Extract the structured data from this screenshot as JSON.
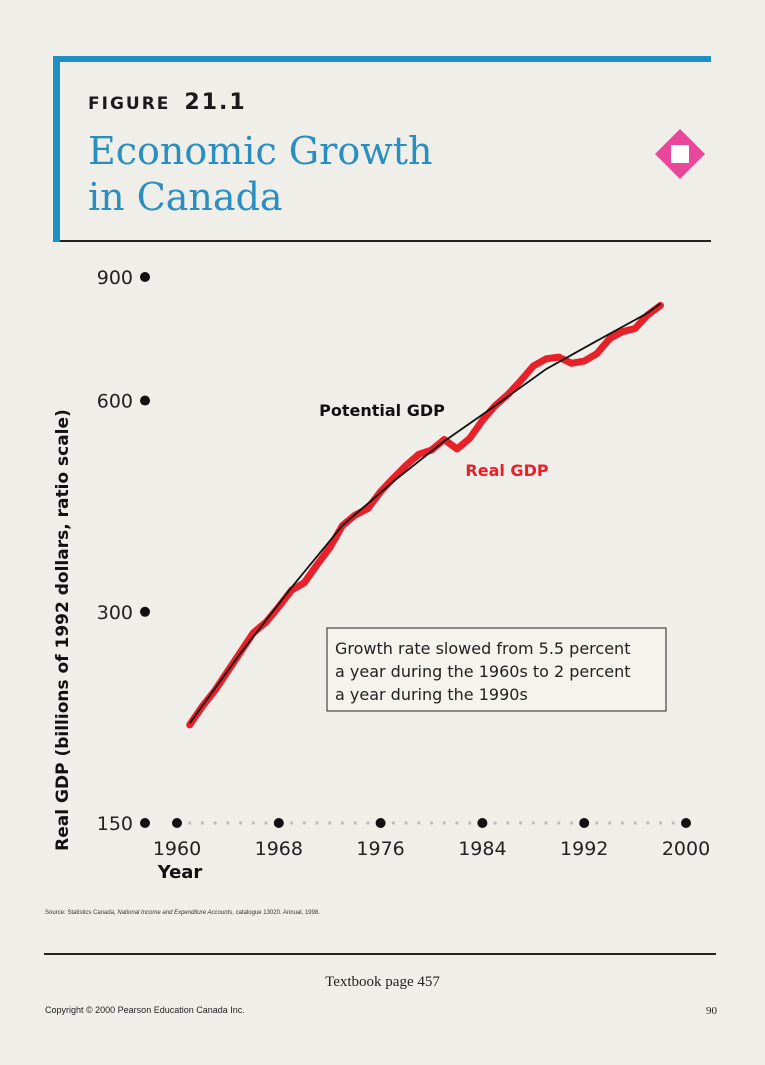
{
  "figure": {
    "label": "FIGURE",
    "number": "21.1",
    "title_line1": "Economic Growth",
    "title_line2": "in Canada"
  },
  "colors": {
    "frame": "#1d8fc4",
    "title": "#2a8fc0",
    "real_gdp": "#e8202a",
    "potential_gdp": "#111111",
    "logo": "#e8479b"
  },
  "logo_icon": "pink-diamond-icon",
  "chart_data": {
    "type": "line",
    "y_scale": "log",
    "ylabel": "Real GDP (billions of 1992 dollars, ratio scale)",
    "xlabel": "Year",
    "x_ticks": [
      1960,
      1968,
      1976,
      1984,
      1992,
      2000
    ],
    "y_ticks": [
      150,
      300,
      600,
      900
    ],
    "xlim": [
      1960,
      2000
    ],
    "ylim": [
      150,
      900
    ],
    "series": [
      {
        "name": "Real GDP",
        "x": [
          1961,
          1962,
          1963,
          1964,
          1965,
          1966,
          1967,
          1968,
          1969,
          1970,
          1971,
          1972,
          1973,
          1974,
          1975,
          1976,
          1977,
          1978,
          1979,
          1980,
          1981,
          1982,
          1983,
          1984,
          1985,
          1986,
          1987,
          1988,
          1989,
          1990,
          1991,
          1992,
          1993,
          1994,
          1995,
          1996,
          1997,
          1998
        ],
        "values": [
          207,
          220,
          232,
          247,
          263,
          280,
          290,
          305,
          322,
          330,
          350,
          370,
          398,
          412,
          421,
          445,
          465,
          485,
          503,
          510,
          528,
          512,
          530,
          562,
          590,
          612,
          640,
          672,
          688,
          692,
          678,
          683,
          700,
          735,
          752,
          760,
          795,
          820
        ]
      },
      {
        "name": "Potential GDP",
        "x": [
          1961,
          1965,
          1969,
          1973,
          1977,
          1981,
          1985,
          1989,
          1993,
          1997,
          1998
        ],
        "values": [
          208,
          262,
          325,
          398,
          460,
          525,
          590,
          665,
          730,
          800,
          825
        ]
      }
    ],
    "annotations": [
      "Growth rate slowed from 5.5 percent",
      "a year during the 1960s to 2 percent",
      "a year during the 1990s"
    ]
  },
  "footer": {
    "source_prefix": "Source: Statistics Canada, ",
    "source_italic": "National Income and Expenditure Accounts",
    "source_suffix": ", catalogue 13020. Annual, 1998.",
    "textbook": "Textbook page 457",
    "copyright": "Copyright © 2000 Pearson Education Canada Inc.",
    "page": "90"
  }
}
